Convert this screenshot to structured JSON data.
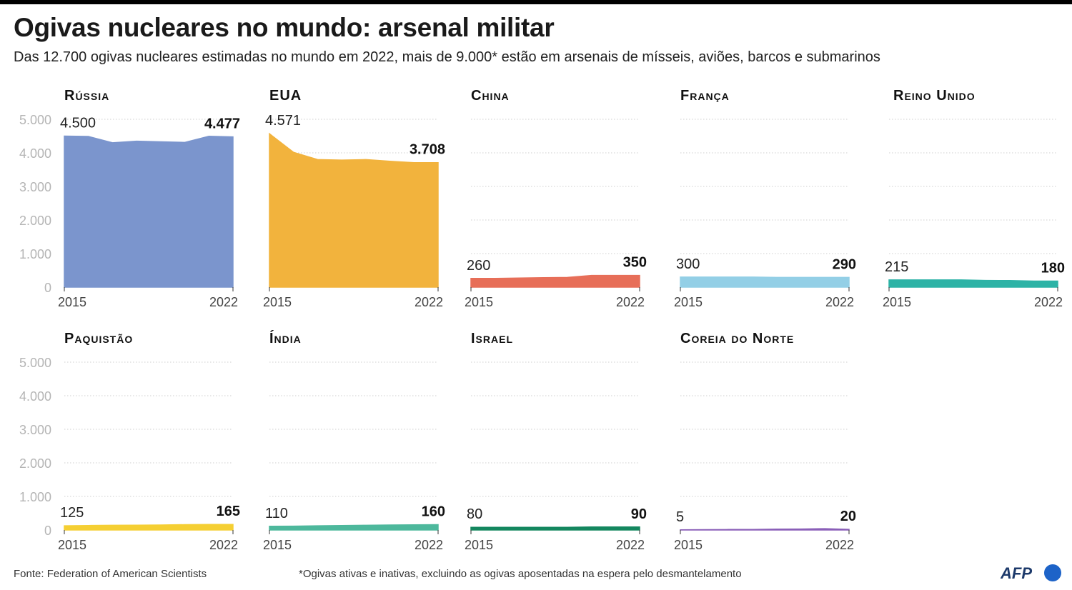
{
  "title": "Ogivas nucleares no mundo: arsenal militar",
  "subtitle": "Das 12.700 ogivas nucleares estimadas no mundo em 2022, mais de 9.000* estão em arsenais de mísseis, aviões, barcos e submarinos",
  "footer": {
    "source": "Fonte: Federation of American Scientists",
    "note": "*Ogivas ativas e inativas, excluindo as ogivas aposentadas na espera pelo desmantelamento",
    "logo": "AFP"
  },
  "chart_data": [
    {
      "type": "area",
      "title": "Rússia",
      "color": "#7b95cd",
      "x": [
        2015,
        2016,
        2017,
        2018,
        2019,
        2020,
        2021,
        2022
      ],
      "values": [
        4500,
        4490,
        4300,
        4350,
        4330,
        4310,
        4495,
        4477
      ],
      "start_label": "4.500",
      "end_label": "4.477",
      "ylim": [
        0,
        5000
      ],
      "yticks": [
        "0",
        "1.000",
        "2.000",
        "3.000",
        "4.000",
        "5.000"
      ],
      "xtick_labels": [
        "2015",
        "2022"
      ],
      "grid": true
    },
    {
      "type": "area",
      "title": "EUA",
      "color": "#f2b33d",
      "x": [
        2015,
        2016,
        2017,
        2018,
        2019,
        2020,
        2021,
        2022
      ],
      "values": [
        4571,
        4018,
        3800,
        3785,
        3800,
        3750,
        3708,
        3708
      ],
      "start_label": "4.571",
      "end_label": "3.708",
      "ylim": [
        0,
        5000
      ],
      "xtick_labels": [
        "2015",
        "2022"
      ],
      "grid": true
    },
    {
      "type": "area",
      "title": "China",
      "color": "#e76e58",
      "x": [
        2015,
        2016,
        2017,
        2018,
        2019,
        2020,
        2021,
        2022
      ],
      "values": [
        260,
        260,
        270,
        280,
        290,
        350,
        350,
        350
      ],
      "start_label": "260",
      "end_label": "350",
      "ylim": [
        0,
        5000
      ],
      "xtick_labels": [
        "2015",
        "2022"
      ],
      "grid": true
    },
    {
      "type": "area",
      "title": "França",
      "color": "#93cfe6",
      "x": [
        2015,
        2016,
        2017,
        2018,
        2019,
        2020,
        2021,
        2022
      ],
      "values": [
        300,
        300,
        300,
        300,
        290,
        290,
        290,
        290
      ],
      "start_label": "300",
      "end_label": "290",
      "ylim": [
        0,
        5000
      ],
      "xtick_labels": [
        "2015",
        "2022"
      ],
      "grid": true
    },
    {
      "type": "area",
      "title": "Reino Unido",
      "color": "#2db3a6",
      "x": [
        2015,
        2016,
        2017,
        2018,
        2019,
        2020,
        2021,
        2022
      ],
      "values": [
        215,
        215,
        215,
        215,
        200,
        195,
        180,
        180
      ],
      "start_label": "215",
      "end_label": "180",
      "ylim": [
        0,
        5000
      ],
      "xtick_labels": [
        "2015",
        "2022"
      ],
      "grid": true
    },
    {
      "type": "area",
      "title": "Paquistão",
      "color": "#f5cf33",
      "x": [
        2015,
        2016,
        2017,
        2018,
        2019,
        2020,
        2021,
        2022
      ],
      "values": [
        125,
        135,
        140,
        145,
        150,
        160,
        165,
        165
      ],
      "start_label": "125",
      "end_label": "165",
      "ylim": [
        0,
        5000
      ],
      "yticks": [
        "0",
        "1.000",
        "2.000",
        "3.000",
        "4.000",
        "5.000"
      ],
      "xtick_labels": [
        "2015",
        "2022"
      ],
      "grid": true
    },
    {
      "type": "area",
      "title": "Índia",
      "color": "#4db89c",
      "x": [
        2015,
        2016,
        2017,
        2018,
        2019,
        2020,
        2021,
        2022
      ],
      "values": [
        110,
        115,
        125,
        135,
        140,
        150,
        156,
        160
      ],
      "start_label": "110",
      "end_label": "160",
      "ylim": [
        0,
        5000
      ],
      "xtick_labels": [
        "2015",
        "2022"
      ],
      "grid": true
    },
    {
      "type": "area",
      "title": "Israel",
      "color": "#14875f",
      "x": [
        2015,
        2016,
        2017,
        2018,
        2019,
        2020,
        2021,
        2022
      ],
      "values": [
        80,
        80,
        80,
        80,
        80,
        90,
        90,
        90
      ],
      "start_label": "80",
      "end_label": "90",
      "ylim": [
        0,
        5000
      ],
      "xtick_labels": [
        "2015",
        "2022"
      ],
      "grid": true
    },
    {
      "type": "area",
      "title": "Coreia do Norte",
      "color": "#8a5fb8",
      "x": [
        2015,
        2016,
        2017,
        2018,
        2019,
        2020,
        2021,
        2022
      ],
      "values": [
        5,
        10,
        15,
        15,
        25,
        30,
        40,
        20
      ],
      "start_label": "5",
      "end_label": "20",
      "ylim": [
        0,
        5000
      ],
      "xtick_labels": [
        "2015",
        "2022"
      ],
      "grid": true
    }
  ]
}
